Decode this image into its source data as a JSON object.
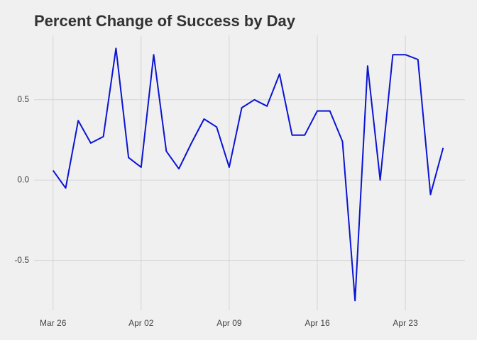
{
  "chart_data": {
    "type": "line",
    "title": "Percent Change of Success by Day",
    "x": [
      "Mar 26",
      "Mar 27",
      "Mar 28",
      "Mar 29",
      "Mar 30",
      "Mar 31",
      "Apr 01",
      "Apr 02",
      "Apr 03",
      "Apr 04",
      "Apr 05",
      "Apr 06",
      "Apr 07",
      "Apr 08",
      "Apr 09",
      "Apr 10",
      "Apr 11",
      "Apr 12",
      "Apr 13",
      "Apr 14",
      "Apr 15",
      "Apr 16",
      "Apr 17",
      "Apr 18",
      "Apr 19",
      "Apr 20",
      "Apr 21",
      "Apr 22",
      "Apr 23",
      "Apr 24",
      "Apr 25",
      "Apr 26"
    ],
    "values": [
      0.06,
      -0.05,
      0.37,
      0.23,
      0.27,
      0.82,
      0.14,
      0.08,
      0.78,
      0.18,
      0.07,
      0.23,
      0.38,
      0.33,
      0.08,
      0.45,
      0.5,
      0.46,
      0.66,
      0.28,
      0.28,
      0.43,
      0.43,
      0.24,
      -0.75,
      0.71,
      0.0,
      0.78,
      0.78,
      0.75,
      -0.09,
      0.2
    ],
    "color": "#0a14d2",
    "xlim": [
      "Mar 25",
      "Apr 27"
    ],
    "xticks": [
      "Mar 26",
      "Apr 02",
      "Apr 09",
      "Apr 16",
      "Apr 23"
    ],
    "ylim": [
      -0.81,
      0.9
    ],
    "yticks": [
      -0.5,
      0.0,
      0.5
    ],
    "grid": true
  }
}
